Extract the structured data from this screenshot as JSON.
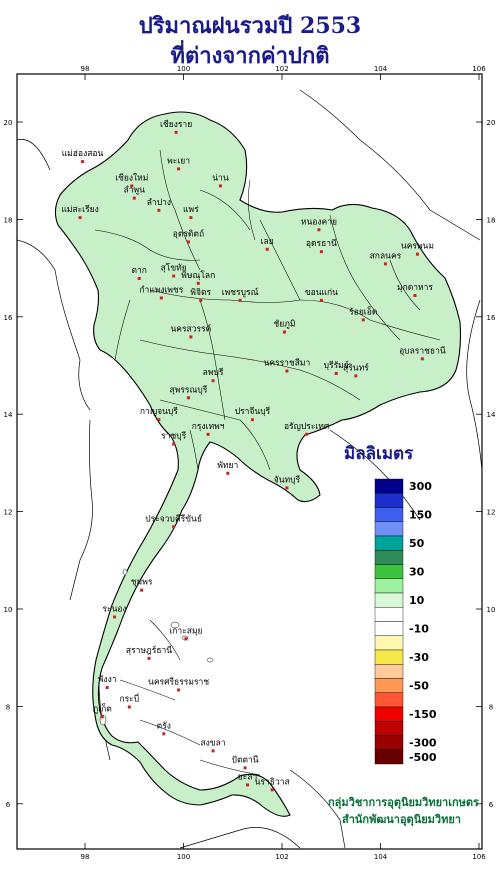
{
  "title": {
    "line1": "ปริมาณฝนรวมปี 2553",
    "line2": "ที่ต่างจากค่าปกติ"
  },
  "axes": {
    "longitude_ticks": [
      "98",
      "100",
      "102",
      "104",
      "106"
    ],
    "latitude_ticks": [
      "20",
      "18",
      "16",
      "14",
      "12",
      "10",
      "8",
      "6"
    ]
  },
  "legend": {
    "title": "มิลลิเมตร",
    "bins": [
      {
        "label": "300",
        "color": "#00008b"
      },
      {
        "label": "",
        "color": "#1c2fcc"
      },
      {
        "label": "150",
        "color": "#3d5ff0"
      },
      {
        "label": "",
        "color": "#6f8ff5"
      },
      {
        "label": "50",
        "color": "#00a39b"
      },
      {
        "label": "",
        "color": "#2e8b57"
      },
      {
        "label": "30",
        "color": "#3cc43c"
      },
      {
        "label": "",
        "color": "#9ef09e"
      },
      {
        "label": "10",
        "color": "#d8f8d8"
      },
      {
        "label": "",
        "color": "#ffffff"
      },
      {
        "label": "-10",
        "color": "#ffffff"
      },
      {
        "label": "",
        "color": "#fff8b0"
      },
      {
        "label": "-30",
        "color": "#f5e84a"
      },
      {
        "label": "",
        "color": "#ffcc99"
      },
      {
        "label": "-50",
        "color": "#ff9955"
      },
      {
        "label": "",
        "color": "#ff5533"
      },
      {
        "label": "-150",
        "color": "#ee0000"
      },
      {
        "label": "",
        "color": "#c00000"
      },
      {
        "label": "-300",
        "color": "#990000"
      },
      {
        "label": "-500",
        "color": "#660000"
      }
    ]
  },
  "place_labels": [
    {
      "name": "เชียงราย",
      "lon": 99.85,
      "lat": 19.9
    },
    {
      "name": "แม่ฮ่องสอน",
      "lon": 97.95,
      "lat": 19.3
    },
    {
      "name": "พะเยา",
      "lon": 99.9,
      "lat": 19.15
    },
    {
      "name": "น่าน",
      "lon": 100.75,
      "lat": 18.8
    },
    {
      "name": "เชียงใหม่",
      "lon": 98.95,
      "lat": 18.8
    },
    {
      "name": "ลำพูน",
      "lon": 99.0,
      "lat": 18.55
    },
    {
      "name": "ลำปาง",
      "lon": 99.5,
      "lat": 18.3
    },
    {
      "name": "แพร่",
      "lon": 100.15,
      "lat": 18.15
    },
    {
      "name": "แม่สะเรียง",
      "lon": 97.9,
      "lat": 18.15
    },
    {
      "name": "อุตรดิตถ์",
      "lon": 100.1,
      "lat": 17.65
    },
    {
      "name": "หนองคาย",
      "lon": 102.75,
      "lat": 17.9
    },
    {
      "name": "นครพนม",
      "lon": 104.75,
      "lat": 17.4
    },
    {
      "name": "อุดรธานี",
      "lon": 102.8,
      "lat": 17.45
    },
    {
      "name": "เลย",
      "lon": 101.7,
      "lat": 17.5
    },
    {
      "name": "สกลนคร",
      "lon": 104.1,
      "lat": 17.2
    },
    {
      "name": "ตาก",
      "lon": 99.1,
      "lat": 16.9
    },
    {
      "name": "สุโขทัย",
      "lon": 99.8,
      "lat": 16.95
    },
    {
      "name": "พิษณุโลก",
      "lon": 100.3,
      "lat": 16.8
    },
    {
      "name": "มุกดาหาร",
      "lon": 104.7,
      "lat": 16.55
    },
    {
      "name": "กำแพงเพชร",
      "lon": 99.55,
      "lat": 16.5
    },
    {
      "name": "พิจิตร",
      "lon": 100.35,
      "lat": 16.45
    },
    {
      "name": "เพชรบูรณ์",
      "lon": 101.15,
      "lat": 16.45
    },
    {
      "name": "ขอนแก่น",
      "lon": 102.8,
      "lat": 16.45
    },
    {
      "name": "ร้อยเอ็ด",
      "lon": 103.65,
      "lat": 16.05
    },
    {
      "name": "นครสวรรค์",
      "lon": 100.15,
      "lat": 15.7
    },
    {
      "name": "ชัยภูมิ",
      "lon": 102.05,
      "lat": 15.8
    },
    {
      "name": "อุบลราชธานี",
      "lon": 104.85,
      "lat": 15.25
    },
    {
      "name": "นครราชสีมา",
      "lon": 102.1,
      "lat": 15.0
    },
    {
      "name": "บุรีรัมย์",
      "lon": 103.1,
      "lat": 14.95
    },
    {
      "name": "สุรินทร์",
      "lon": 103.5,
      "lat": 14.9
    },
    {
      "name": "ลพบุรี",
      "lon": 100.6,
      "lat": 14.8
    },
    {
      "name": "สุพรรณบุรี",
      "lon": 100.1,
      "lat": 14.45
    },
    {
      "name": "กาญจนบุรี",
      "lon": 99.5,
      "lat": 14.0
    },
    {
      "name": "ปราจีนบุรี",
      "lon": 101.4,
      "lat": 14.0
    },
    {
      "name": "อรัญประเทศ",
      "lon": 102.5,
      "lat": 13.7
    },
    {
      "name": "กรุงเทพฯ",
      "lon": 100.5,
      "lat": 13.7
    },
    {
      "name": "ราชบุรี",
      "lon": 99.8,
      "lat": 13.5
    },
    {
      "name": "พัทยา",
      "lon": 100.9,
      "lat": 12.9
    },
    {
      "name": "จันทบุรี",
      "lon": 102.1,
      "lat": 12.6
    },
    {
      "name": "ประจวบคีรีขันธ์",
      "lon": 99.8,
      "lat": 11.8
    },
    {
      "name": "ชุมพร",
      "lon": 99.15,
      "lat": 10.5
    },
    {
      "name": "ระนอง",
      "lon": 98.6,
      "lat": 9.95
    },
    {
      "name": "เกาะสมุย",
      "lon": 100.05,
      "lat": 9.5
    },
    {
      "name": "สุราษฎร์ธานี",
      "lon": 99.3,
      "lat": 9.1
    },
    {
      "name": "พังงา",
      "lon": 98.45,
      "lat": 8.5
    },
    {
      "name": "ภูเก็ต",
      "lon": 98.35,
      "lat": 7.9
    },
    {
      "name": "กระบี่",
      "lon": 98.9,
      "lat": 8.1
    },
    {
      "name": "นครศรีธรรมราช",
      "lon": 99.9,
      "lat": 8.45
    },
    {
      "name": "ตรัง",
      "lon": 99.6,
      "lat": 7.55
    },
    {
      "name": "สงขลา",
      "lon": 100.6,
      "lat": 7.2
    },
    {
      "name": "ปัตตานี",
      "lon": 101.25,
      "lat": 6.85
    },
    {
      "name": "ยะลา",
      "lon": 101.3,
      "lat": 6.5
    },
    {
      "name": "นราธิวาส",
      "lon": 101.8,
      "lat": 6.4
    }
  ],
  "credits": {
    "line1": "กลุ่มวิชาการอุตุนิยมวิทยาเกษตร",
    "line2": "สำนักพัฒนาอุตุนิยมวิทยา"
  }
}
